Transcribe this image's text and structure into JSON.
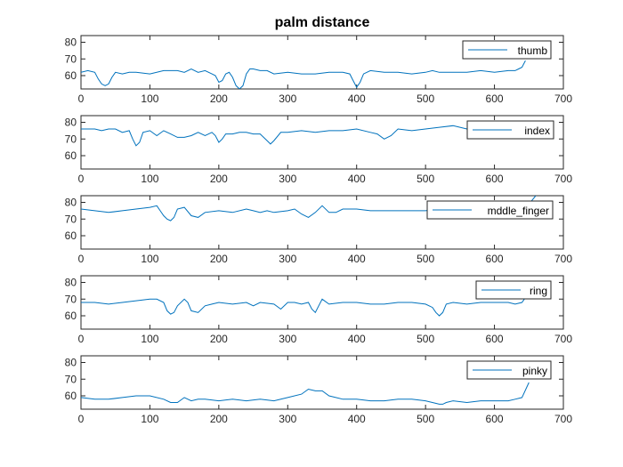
{
  "figure": {
    "title": "palm distance",
    "colors": {
      "line": "#0072BD",
      "axis": "#262626",
      "background": "#ffffff"
    }
  },
  "chart_data": [
    {
      "type": "line",
      "title": "palm distance",
      "xlim": [
        0,
        700
      ],
      "ylim": [
        52,
        84
      ],
      "xticks": [
        0,
        100,
        200,
        300,
        400,
        500,
        600,
        700
      ],
      "yticks": [
        60,
        70,
        80
      ],
      "legend": "top-right",
      "series": [
        {
          "name": "thumb",
          "x": [
            0,
            10,
            20,
            25,
            30,
            35,
            40,
            45,
            50,
            60,
            70,
            80,
            100,
            120,
            140,
            150,
            160,
            170,
            180,
            190,
            195,
            200,
            205,
            210,
            215,
            220,
            225,
            230,
            235,
            240,
            245,
            250,
            260,
            270,
            280,
            300,
            320,
            340,
            360,
            380,
            390,
            395,
            400,
            405,
            410,
            420,
            440,
            460,
            480,
            500,
            510,
            520,
            540,
            560,
            580,
            600,
            620,
            630,
            635,
            640,
            645
          ],
          "y": [
            62,
            63,
            62,
            58,
            55,
            54,
            55,
            59,
            62,
            61,
            62,
            62,
            61,
            63,
            63,
            62,
            64,
            62,
            63,
            61,
            60,
            56,
            57,
            61,
            62,
            59,
            54,
            52,
            54,
            61,
            64,
            64,
            63,
            63,
            61,
            62,
            61,
            61,
            62,
            62,
            61,
            57,
            53,
            56,
            61,
            63,
            62,
            62,
            61,
            62,
            63,
            62,
            62,
            62,
            63,
            62,
            63,
            63,
            64,
            65,
            69
          ]
        },
        {
          "name": "index",
          "x": [
            0,
            10,
            20,
            30,
            40,
            50,
            60,
            70,
            75,
            80,
            85,
            90,
            100,
            110,
            120,
            130,
            140,
            150,
            160,
            170,
            180,
            190,
            195,
            200,
            205,
            210,
            220,
            230,
            240,
            250,
            260,
            270,
            275,
            280,
            290,
            300,
            320,
            340,
            360,
            380,
            400,
            420,
            430,
            440,
            450,
            460,
            480,
            500,
            520,
            540,
            560,
            580,
            600,
            620,
            630,
            640,
            645
          ],
          "y": [
            76,
            76,
            76,
            75,
            76,
            76,
            74,
            75,
            70,
            66,
            68,
            74,
            75,
            72,
            75,
            73,
            71,
            71,
            72,
            74,
            72,
            74,
            72,
            68,
            70,
            73,
            73,
            74,
            74,
            73,
            73,
            69,
            67,
            69,
            74,
            74,
            75,
            74,
            75,
            75,
            76,
            74,
            73,
            70,
            72,
            76,
            75,
            76,
            77,
            78,
            76,
            76,
            76,
            77,
            76,
            78,
            81
          ]
        },
        {
          "name": "mddle_finger",
          "x": [
            0,
            20,
            40,
            60,
            80,
            100,
            110,
            115,
            120,
            125,
            130,
            135,
            140,
            150,
            160,
            170,
            180,
            200,
            220,
            240,
            250,
            260,
            270,
            280,
            300,
            310,
            320,
            330,
            340,
            350,
            360,
            370,
            380,
            400,
            420,
            440,
            460,
            480,
            500,
            520,
            540,
            560,
            580,
            600,
            620,
            640,
            650,
            660
          ],
          "y": [
            76,
            75,
            74,
            75,
            76,
            77,
            78,
            75,
            72,
            70,
            69,
            71,
            76,
            77,
            72,
            71,
            74,
            75,
            74,
            76,
            75,
            74,
            75,
            74,
            75,
            76,
            73,
            71,
            74,
            78,
            74,
            74,
            76,
            76,
            75,
            75,
            75,
            75,
            75,
            76,
            76,
            76,
            76,
            77,
            76,
            76,
            79,
            84
          ]
        },
        {
          "name": "ring",
          "x": [
            0,
            20,
            40,
            60,
            80,
            100,
            110,
            120,
            125,
            130,
            135,
            140,
            150,
            155,
            160,
            170,
            180,
            190,
            200,
            220,
            240,
            250,
            260,
            280,
            290,
            300,
            310,
            320,
            330,
            335,
            340,
            345,
            350,
            360,
            380,
            400,
            420,
            440,
            460,
            480,
            500,
            510,
            515,
            520,
            525,
            530,
            540,
            560,
            580,
            600,
            620,
            630,
            640,
            650
          ],
          "y": [
            68,
            68,
            67,
            68,
            69,
            70,
            70,
            68,
            63,
            61,
            62,
            66,
            70,
            68,
            63,
            62,
            66,
            67,
            68,
            67,
            68,
            66,
            68,
            67,
            64,
            68,
            68,
            67,
            68,
            64,
            62,
            66,
            70,
            67,
            68,
            68,
            67,
            67,
            68,
            68,
            67,
            65,
            62,
            60,
            62,
            67,
            68,
            67,
            68,
            68,
            68,
            67,
            68,
            74
          ]
        },
        {
          "name": "pinky",
          "x": [
            0,
            20,
            40,
            60,
            80,
            100,
            120,
            130,
            140,
            150,
            160,
            170,
            180,
            200,
            220,
            240,
            260,
            280,
            300,
            320,
            330,
            340,
            350,
            360,
            380,
            400,
            420,
            440,
            460,
            480,
            500,
            510,
            520,
            525,
            530,
            540,
            560,
            580,
            600,
            620,
            630,
            640,
            650
          ],
          "y": [
            59,
            58,
            58,
            59,
            60,
            60,
            58,
            56,
            56,
            59,
            57,
            58,
            58,
            57,
            58,
            57,
            58,
            57,
            59,
            61,
            64,
            63,
            63,
            60,
            58,
            58,
            57,
            57,
            58,
            58,
            57,
            56,
            55,
            55,
            56,
            57,
            56,
            57,
            57,
            57,
            58,
            59,
            68
          ]
        }
      ]
    }
  ]
}
